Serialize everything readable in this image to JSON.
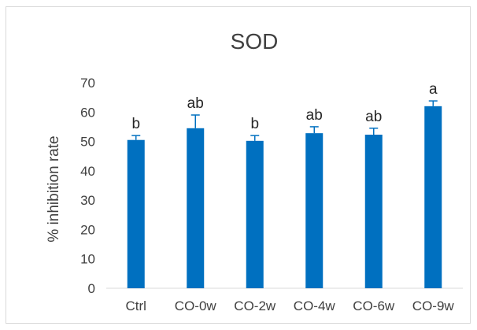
{
  "chart_data": {
    "type": "bar",
    "title": "SOD",
    "xlabel": "",
    "ylabel": "% inhibition rate",
    "ylim": [
      0,
      70
    ],
    "yticks": [
      0,
      10,
      20,
      30,
      40,
      50,
      60,
      70
    ],
    "grid": false,
    "legend": "none",
    "bar_color": "#0070c0",
    "categories": [
      "Ctrl",
      "CO-0w",
      "CO-2w",
      "CO-4w",
      "CO-6w",
      "CO-9w"
    ],
    "values": [
      50.5,
      54.5,
      50.2,
      52.8,
      52.3,
      62.0
    ],
    "errors": [
      1.5,
      4.5,
      1.8,
      2.2,
      2.2,
      1.8
    ],
    "annotations": [
      "b",
      "ab",
      "b",
      "ab",
      "ab",
      "a"
    ]
  }
}
